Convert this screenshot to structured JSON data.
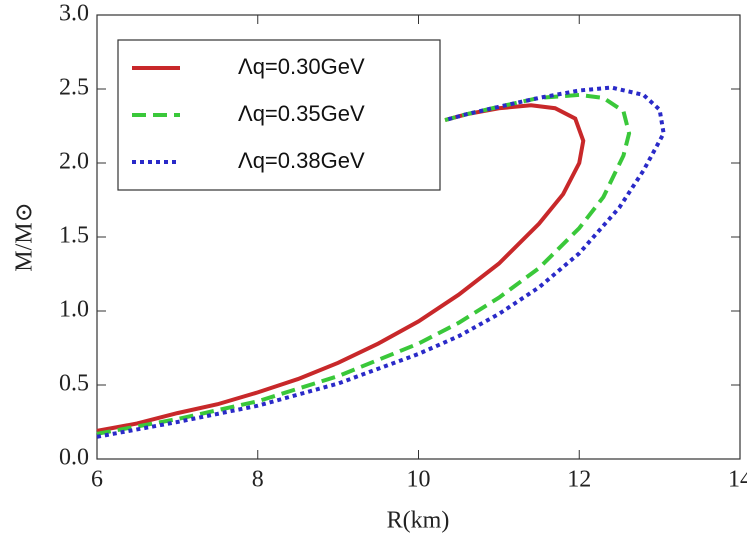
{
  "chart_data": {
    "type": "line",
    "x_label": "R(km)",
    "y_label": "M/M⊙",
    "xlim": [
      6,
      14
    ],
    "xticks": [
      6,
      8,
      10,
      12,
      14
    ],
    "ylim": [
      0,
      3
    ],
    "yticks": [
      {
        "value": 0,
        "label": "0.0"
      },
      {
        "value": 0.5,
        "label": "0.5"
      },
      {
        "value": 1,
        "label": "1.0"
      },
      {
        "value": 1.5,
        "label": "1.5"
      },
      {
        "value": 2,
        "label": "2.0"
      },
      {
        "value": 2.5,
        "label": "2.5"
      },
      {
        "value": 3,
        "label": "3.0"
      }
    ],
    "legend": "top-left",
    "series": [
      {
        "name": "Λq=0.30GeV",
        "color": "#c8282a",
        "style": "solid",
        "x": [
          6.0,
          6.5,
          7.0,
          7.5,
          8.0,
          8.5,
          9.0,
          9.5,
          10.0,
          10.5,
          11.0,
          11.5,
          11.8,
          12.0,
          12.05,
          11.95,
          11.7,
          11.4,
          11.0,
          10.6,
          10.33
        ],
        "values": [
          0.19,
          0.24,
          0.31,
          0.37,
          0.45,
          0.54,
          0.65,
          0.78,
          0.93,
          1.11,
          1.32,
          1.59,
          1.79,
          2.0,
          2.15,
          2.3,
          2.37,
          2.39,
          2.37,
          2.33,
          2.29
        ]
      },
      {
        "name": "Λq=0.35GeV",
        "color": "#3ac83a",
        "style": "dashed",
        "x": [
          6.0,
          7.0,
          8.0,
          9.0,
          10.0,
          10.5,
          11.0,
          11.5,
          12.0,
          12.3,
          12.55,
          12.62,
          12.55,
          12.3,
          12.0,
          11.5,
          11.0,
          10.6,
          10.33
        ],
        "values": [
          0.17,
          0.27,
          0.39,
          0.56,
          0.78,
          0.92,
          1.09,
          1.29,
          1.56,
          1.77,
          2.05,
          2.2,
          2.35,
          2.44,
          2.46,
          2.44,
          2.38,
          2.33,
          2.29
        ]
      },
      {
        "name": "Λq=0.38GeV",
        "color": "#2a2ac8",
        "style": "dotted",
        "x": [
          6.0,
          7.0,
          8.0,
          9.0,
          10.0,
          10.5,
          11.0,
          11.5,
          12.0,
          12.5,
          12.8,
          13.05,
          13.0,
          12.8,
          12.4,
          12.0,
          11.5,
          11.0,
          10.6,
          10.33
        ],
        "values": [
          0.15,
          0.25,
          0.36,
          0.51,
          0.71,
          0.83,
          0.98,
          1.16,
          1.39,
          1.7,
          1.95,
          2.2,
          2.36,
          2.46,
          2.51,
          2.49,
          2.44,
          2.38,
          2.33,
          2.29
        ]
      }
    ]
  }
}
